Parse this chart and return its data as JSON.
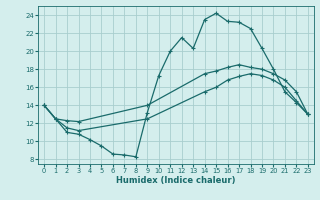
{
  "xlabel": "Humidex (Indice chaleur)",
  "bg_color": "#d4eeed",
  "grid_color": "#a8cece",
  "line_color": "#1a6b6b",
  "xlim": [
    -0.5,
    23.5
  ],
  "ylim": [
    7.5,
    25.0
  ],
  "xticks": [
    0,
    1,
    2,
    3,
    4,
    5,
    6,
    7,
    8,
    9,
    10,
    11,
    12,
    13,
    14,
    15,
    16,
    17,
    18,
    19,
    20,
    21,
    22,
    23
  ],
  "yticks": [
    8,
    10,
    12,
    14,
    16,
    18,
    20,
    22,
    24
  ],
  "line1_x": [
    0,
    1,
    2,
    3,
    4,
    5,
    6,
    7,
    8,
    9,
    10,
    11,
    12,
    13,
    14,
    15,
    16,
    17,
    18,
    19,
    20,
    21,
    22,
    23
  ],
  "line1_y": [
    14.0,
    12.5,
    11.0,
    10.8,
    10.2,
    9.5,
    8.6,
    8.5,
    8.3,
    13.2,
    17.3,
    20.0,
    21.5,
    20.3,
    23.5,
    24.2,
    23.3,
    23.2,
    22.5,
    20.3,
    18.0,
    15.5,
    14.3,
    13.0
  ],
  "line2_x": [
    0,
    1,
    2,
    3,
    9,
    14,
    15,
    16,
    17,
    18,
    19,
    20,
    21,
    22,
    23
  ],
  "line2_y": [
    14.0,
    12.5,
    12.3,
    12.2,
    14.0,
    17.5,
    17.8,
    18.2,
    18.5,
    18.2,
    18.0,
    17.5,
    16.8,
    15.5,
    13.0
  ],
  "line3_x": [
    0,
    1,
    2,
    3,
    9,
    14,
    15,
    16,
    17,
    18,
    19,
    20,
    21,
    22,
    23
  ],
  "line3_y": [
    14.0,
    12.5,
    11.5,
    11.2,
    12.5,
    15.5,
    16.0,
    16.8,
    17.2,
    17.5,
    17.3,
    16.8,
    16.0,
    14.5,
    13.0
  ]
}
